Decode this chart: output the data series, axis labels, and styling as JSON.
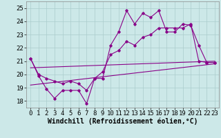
{
  "xlabel": "Windchill (Refroidissement éolien,°C)",
  "xlim": [
    -0.5,
    23.5
  ],
  "ylim": [
    17.5,
    25.5
  ],
  "yticks": [
    18,
    19,
    20,
    21,
    22,
    23,
    24,
    25
  ],
  "xticks": [
    0,
    1,
    2,
    3,
    4,
    5,
    6,
    7,
    8,
    9,
    10,
    11,
    12,
    13,
    14,
    15,
    16,
    17,
    18,
    19,
    20,
    21,
    22,
    23
  ],
  "background_color": "#cce8e8",
  "grid_color": "#aacccc",
  "line_color": "#880088",
  "line1_x": [
    0,
    1,
    2,
    3,
    4,
    5,
    6,
    7,
    8,
    9,
    10,
    11,
    12,
    13,
    14,
    15,
    16,
    17,
    18,
    19,
    20,
    21,
    22,
    23
  ],
  "line1_y": [
    21.2,
    19.9,
    18.9,
    18.2,
    18.8,
    18.8,
    18.8,
    17.8,
    19.7,
    19.7,
    22.2,
    23.2,
    24.8,
    23.8,
    24.6,
    24.3,
    24.8,
    23.2,
    23.2,
    23.8,
    23.7,
    22.2,
    20.9,
    20.9
  ],
  "line2_x": [
    0,
    1,
    2,
    3,
    4,
    5,
    6,
    7,
    8,
    9,
    10,
    11,
    12,
    13,
    14,
    15,
    16,
    17,
    18,
    19,
    20,
    21,
    22,
    23
  ],
  "line2_y": [
    21.2,
    20.0,
    19.7,
    19.5,
    19.3,
    19.5,
    19.3,
    18.8,
    19.7,
    20.2,
    21.5,
    21.8,
    22.5,
    22.2,
    22.8,
    23.0,
    23.5,
    23.5,
    23.5,
    23.5,
    23.8,
    21.0,
    20.9,
    20.9
  ],
  "line3_x": [
    0,
    23
  ],
  "line3_y": [
    19.2,
    20.8
  ],
  "line4_x": [
    0,
    23
  ],
  "line4_y": [
    20.5,
    21.0
  ],
  "font_size_xlabel": 7,
  "tick_fontsize": 6.5
}
